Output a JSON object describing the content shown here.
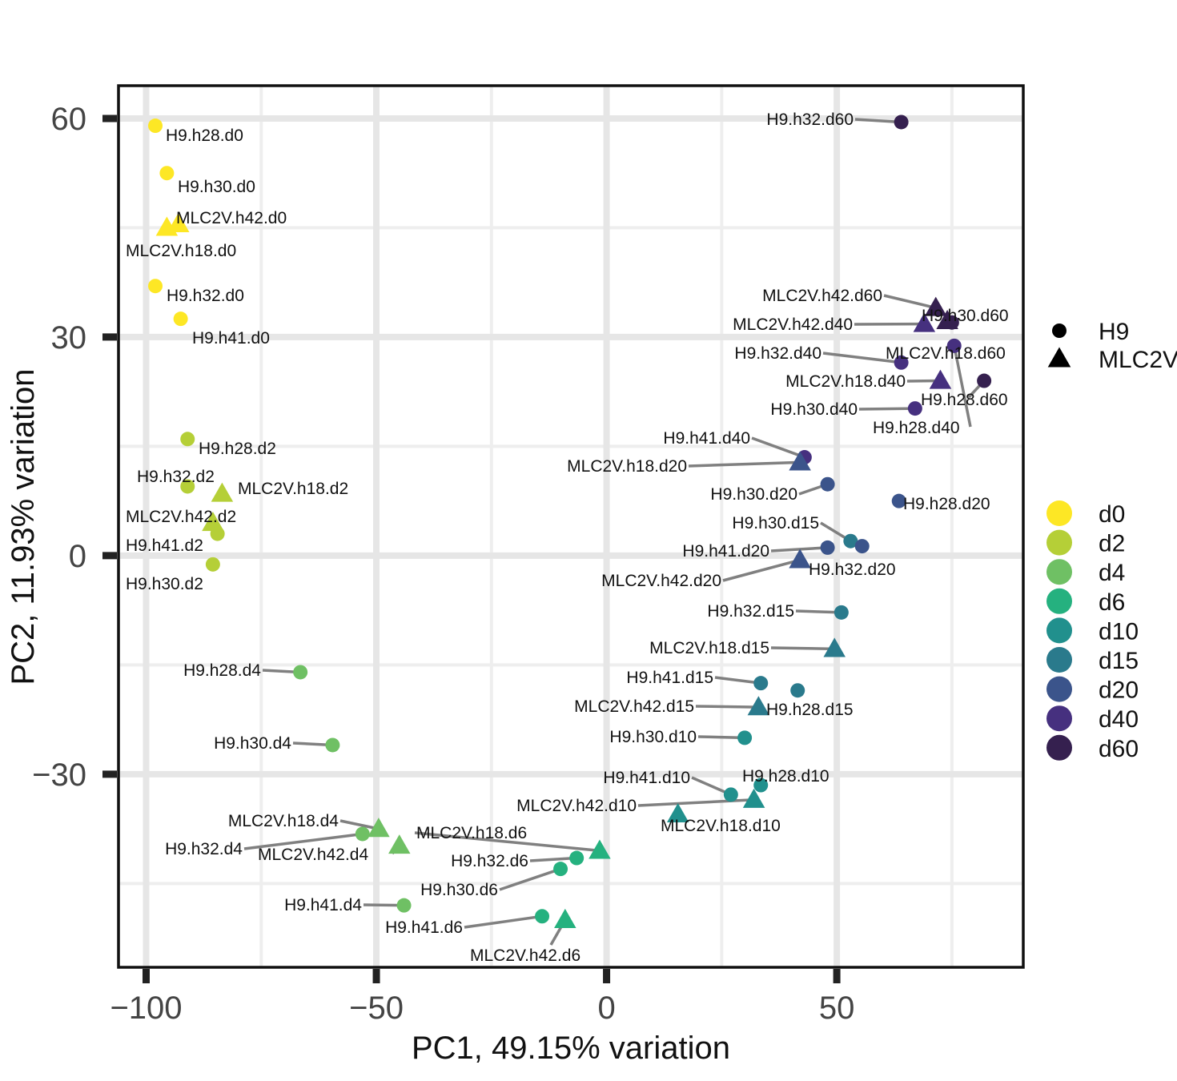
{
  "chart_data": {
    "type": "scatter",
    "xlabel": "PC1, 49.15% variation",
    "ylabel": "PC2, 11.93% variation",
    "xlim": [
      -106,
      90.5
    ],
    "ylim": [
      -56.5,
      64.5
    ],
    "xticks": [
      -100,
      -50,
      0,
      50
    ],
    "xtick_labels": [
      "−100",
      "−50",
      "0",
      "50"
    ],
    "yticks": [
      60,
      30,
      0,
      -30
    ],
    "ytick_labels": [
      "60",
      "30",
      "0",
      "−30"
    ],
    "grid": true,
    "shape_legend": {
      "title": "",
      "entries": [
        {
          "label": "H9",
          "shape": "circle"
        },
        {
          "label": "MLC2V",
          "shape": "triangle"
        }
      ]
    },
    "color_legend": {
      "title": "",
      "entries": [
        {
          "label": "d0",
          "color": "#fde725"
        },
        {
          "label": "d2",
          "color": "#b5cf37"
        },
        {
          "label": "d4",
          "color": "#6fc064"
        },
        {
          "label": "d6",
          "color": "#25b17f"
        },
        {
          "label": "d10",
          "color": "#21908d"
        },
        {
          "label": "d15",
          "color": "#2a7a8c"
        },
        {
          "label": "d20",
          "color": "#3b548b"
        },
        {
          "label": "d40",
          "color": "#46307f"
        },
        {
          "label": "d60",
          "color": "#35204f"
        }
      ]
    },
    "points": [
      {
        "label": "H9.h28.d0",
        "x": -98,
        "y": 59,
        "group": "d0",
        "shape": "circle"
      },
      {
        "label": "H9.h30.d0",
        "x": -95.5,
        "y": 52.5,
        "group": "d0",
        "shape": "circle"
      },
      {
        "label": "MLC2V.h42.d0",
        "x": -93,
        "y": 45.5,
        "group": "d0",
        "shape": "triangle"
      },
      {
        "label": "MLC2V.h18.d0",
        "x": -95.5,
        "y": 45,
        "group": "d0",
        "shape": "triangle"
      },
      {
        "label": "H9.h32.d0",
        "x": -98,
        "y": 37,
        "group": "d0",
        "shape": "circle"
      },
      {
        "label": "H9.h41.d0",
        "x": -92.5,
        "y": 32.5,
        "group": "d0",
        "shape": "circle"
      },
      {
        "label": "H9.h28.d2",
        "x": -91,
        "y": 16,
        "group": "d2",
        "shape": "circle"
      },
      {
        "label": "H9.h32.d2",
        "x": -91,
        "y": 9.5,
        "group": "d2",
        "shape": "circle"
      },
      {
        "label": "MLC2V.h18.d2",
        "x": -83.5,
        "y": 8.5,
        "group": "d2",
        "shape": "triangle"
      },
      {
        "label": "MLC2V.h42.d2",
        "x": -85.5,
        "y": 4.5,
        "group": "d2",
        "shape": "triangle"
      },
      {
        "label": "H9.h41.d2",
        "x": -84.5,
        "y": 3,
        "group": "d2",
        "shape": "circle"
      },
      {
        "label": "H9.h30.d2",
        "x": -85.5,
        "y": -1.2,
        "group": "d2",
        "shape": "circle"
      },
      {
        "label": "H9.h28.d4",
        "x": -66.5,
        "y": -16,
        "group": "d4",
        "shape": "circle"
      },
      {
        "label": "H9.h30.d4",
        "x": -59.5,
        "y": -26,
        "group": "d4",
        "shape": "circle"
      },
      {
        "label": "MLC2V.h18.d4",
        "x": -49.5,
        "y": -37.5,
        "group": "d4",
        "shape": "triangle"
      },
      {
        "label": "H9.h32.d4",
        "x": -53,
        "y": -38.2,
        "group": "d4",
        "shape": "circle"
      },
      {
        "label": "MLC2V.h42.d4",
        "x": -45,
        "y": -39.8,
        "group": "d4",
        "shape": "triangle"
      },
      {
        "label": "H9.h41.d4",
        "x": -44,
        "y": -48,
        "group": "d4",
        "shape": "circle"
      },
      {
        "label": "MLC2V.h18.d6",
        "x": -1.5,
        "y": -40.5,
        "group": "d6",
        "shape": "triangle"
      },
      {
        "label": "H9.h32.d6",
        "x": -6.5,
        "y": -41.5,
        "group": "d6",
        "shape": "circle"
      },
      {
        "label": "H9.h30.d6",
        "x": -10,
        "y": -43,
        "group": "d6",
        "shape": "circle"
      },
      {
        "label": "H9.h41.d6",
        "x": -14,
        "y": -49.5,
        "group": "d6",
        "shape": "circle"
      },
      {
        "label": "MLC2V.h42.d6",
        "x": -9,
        "y": -50,
        "group": "d6",
        "shape": "triangle"
      },
      {
        "label": "H9.h28.d10",
        "x": 33.5,
        "y": -31.5,
        "group": "d10",
        "shape": "circle"
      },
      {
        "label": "H9.h41.d10",
        "x": 27,
        "y": -32.8,
        "group": "d10",
        "shape": "circle"
      },
      {
        "label": "MLC2V.h42.d10",
        "x": 32,
        "y": -33.5,
        "group": "d10",
        "shape": "triangle"
      },
      {
        "label": "MLC2V.h18.d10",
        "x": 15.5,
        "y": -35.5,
        "group": "d10",
        "shape": "triangle"
      },
      {
        "label": "H9.h30.d10",
        "x": 30,
        "y": -25,
        "group": "d10",
        "shape": "circle"
      },
      {
        "label": "H9.h32.d15",
        "x": 51,
        "y": -7.8,
        "group": "d15",
        "shape": "circle"
      },
      {
        "label": "MLC2V.h18.d15",
        "x": 49.5,
        "y": -12.8,
        "group": "d15",
        "shape": "triangle"
      },
      {
        "label": "H9.h41.d15",
        "x": 33.5,
        "y": -17.5,
        "group": "d15",
        "shape": "circle"
      },
      {
        "label": "H9.h28.d15",
        "x": 41.5,
        "y": -18.5,
        "group": "d15",
        "shape": "circle"
      },
      {
        "label": "MLC2V.h42.d15",
        "x": 33,
        "y": -20.8,
        "group": "d15",
        "shape": "triangle"
      },
      {
        "label": "H9.h30.d15",
        "x": 53,
        "y": 2,
        "group": "d15",
        "shape": "circle"
      },
      {
        "label": "H9.h30.d20",
        "x": 48,
        "y": 9.8,
        "group": "d20",
        "shape": "circle"
      },
      {
        "label": "H9.h28.d20",
        "x": 63.5,
        "y": 7.5,
        "group": "d20",
        "shape": "circle"
      },
      {
        "label": "H9.h41.d20",
        "x": 48,
        "y": 1.1,
        "group": "d20",
        "shape": "circle"
      },
      {
        "label": "H9.h32.d20",
        "x": 55.5,
        "y": 1.3,
        "group": "d20",
        "shape": "circle"
      },
      {
        "label": "MLC2V.h42.d20",
        "x": 42,
        "y": -0.6,
        "group": "d20",
        "shape": "triangle"
      },
      {
        "label": "H9.h41.d40",
        "x": 43,
        "y": 13.5,
        "group": "d40",
        "shape": "circle"
      },
      {
        "label": "MLC2V.h18.d20",
        "x": 42,
        "y": 12.8,
        "group": "d20",
        "shape": "triangle"
      },
      {
        "label": "H9.h32.d60",
        "x": 64,
        "y": 59.5,
        "group": "d60",
        "shape": "circle"
      },
      {
        "label": "MLC2V.h42.d60",
        "x": 71.5,
        "y": 34,
        "group": "d60",
        "shape": "triangle"
      },
      {
        "label": "MLC2V.h42.d40",
        "x": 69,
        "y": 31.8,
        "group": "d40",
        "shape": "triangle"
      },
      {
        "label": "H9.h30.d60",
        "x": 75,
        "y": 32,
        "group": "d60",
        "shape": "circle"
      },
      {
        "label": "MLC2V.h18.d60",
        "x": 74,
        "y": 32.2,
        "group": "d60",
        "shape": "triangle"
      },
      {
        "label": "H9.h32.d40",
        "x": 64,
        "y": 26.5,
        "group": "d40",
        "shape": "circle"
      },
      {
        "label": "MLC2V.h18.d40",
        "x": 72.5,
        "y": 24,
        "group": "d40",
        "shape": "triangle"
      },
      {
        "label": "H9.h28.d60",
        "x": 82,
        "y": 24,
        "group": "d60",
        "shape": "circle"
      },
      {
        "label": "H9.h30.d40",
        "x": 67,
        "y": 20.2,
        "group": "d40",
        "shape": "circle"
      },
      {
        "label": "H9.h28.d40",
        "x": 75.5,
        "y": 28.8,
        "group": "d40",
        "shape": "circle"
      }
    ]
  }
}
